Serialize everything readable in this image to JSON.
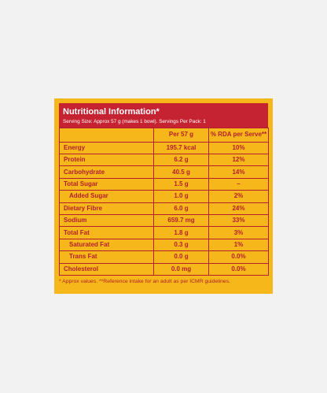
{
  "header": {
    "title": "Nutritional Information*",
    "subtitle": "Serving Size: Approx 57 g (makes 1 bowl). Servings Per Pack: 1"
  },
  "table": {
    "columns": [
      "",
      "Per 57 g",
      "% RDA per Serve**"
    ],
    "rows": [
      {
        "name": "Energy",
        "value": "195.7 kcal",
        "rda": "10%"
      },
      {
        "name": "Protein",
        "value": "6.2 g",
        "rda": "12%"
      },
      {
        "name": "Carbohydrate",
        "value": "40.5 g",
        "rda": "14%"
      },
      {
        "name": "Total Sugar",
        "value": "1.5 g",
        "rda": "–"
      },
      {
        "name": "Added Sugar",
        "value": "1.0 g",
        "rda": "2%"
      },
      {
        "name": "Dietary Fibre",
        "value": "6.0 g",
        "rda": "24%"
      },
      {
        "name": "Sodium",
        "value": "659.7 mg",
        "rda": "33%"
      },
      {
        "name": "Total Fat",
        "value": "1.8 g",
        "rda": "3%"
      },
      {
        "name": "Saturated Fat",
        "value": "0.3 g",
        "rda": "1%"
      },
      {
        "name": "Trans Fat",
        "value": "0.0 g",
        "rda": "0.0%"
      },
      {
        "name": "Cholesterol",
        "value": "0.0 mg",
        "rda": "0.0%"
      }
    ]
  },
  "footnote": "* Approx values. **Reference intake for an adult as per ICMR guidelines.",
  "colors": {
    "background": "#f2f2f2",
    "panel": "#f5b719",
    "header": "#c62332",
    "text": "#b51e2d"
  }
}
